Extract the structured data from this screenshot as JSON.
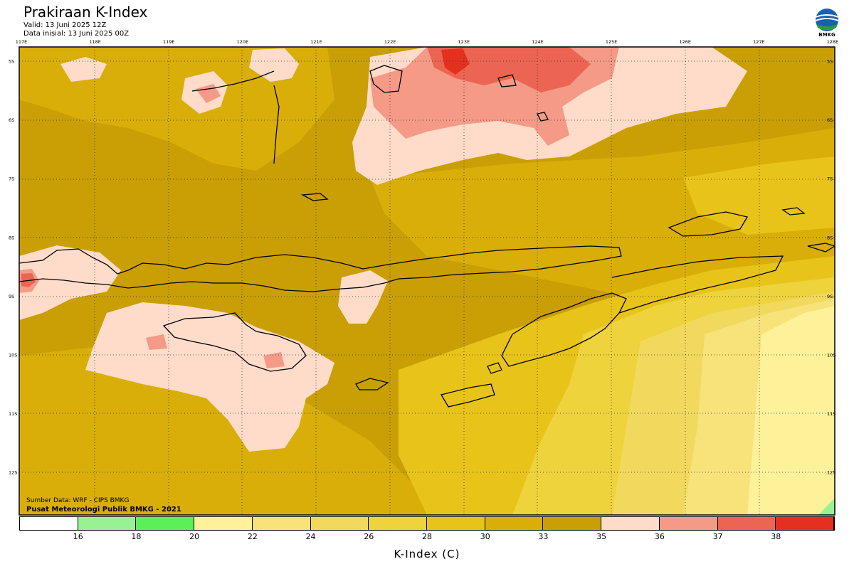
{
  "header": {
    "title": "Prakiraan K-Index",
    "valid": "Valid: 13 Juni 2025 12Z",
    "initial": "Data inisial: 13 Juni 2025 00Z",
    "logo_text": "BMKG"
  },
  "credits": {
    "source": "Sumber Data: WRF - CIPS BMKG",
    "publisher": "Pusat Meteorologi Publik BMKG - 2021"
  },
  "axes": {
    "lon_labels": [
      "117E",
      "118E",
      "119E",
      "120E",
      "121E",
      "122E",
      "123E",
      "124E",
      "125E",
      "126E",
      "127E",
      "128E"
    ],
    "lat_labels": [
      "5S",
      "6S",
      "7S",
      "8S",
      "9S",
      "10S",
      "11S",
      "12S"
    ]
  },
  "colorbar": {
    "title": "K-Index (C)",
    "labels": [
      "16",
      "18",
      "20",
      "22",
      "24",
      "26",
      "28",
      "30",
      "33",
      "35",
      "36",
      "37",
      "38"
    ],
    "colors": [
      "#ffffff",
      "#99f291",
      "#5cef58",
      "#fdf199",
      "#f8e27a",
      "#f1d95e",
      "#eed33d",
      "#e8c41a",
      "#d9ae08",
      "#c99f05",
      "#ffdcc9",
      "#f59a87",
      "#ec6452",
      "#e4301f"
    ]
  },
  "field_colors": {
    "base": "#c99f05",
    "k_33": "#d9ae08",
    "k_30": "#e8c41a",
    "k_28": "#eed33d",
    "k_26": "#f1d95e",
    "k_24": "#f8e27a",
    "k_22": "#fdf199",
    "k_20": "#99f291",
    "k_35": "#ffdcc9",
    "k_36": "#f59a87",
    "k_37": "#ec6452",
    "k_38": "#e4301f"
  }
}
